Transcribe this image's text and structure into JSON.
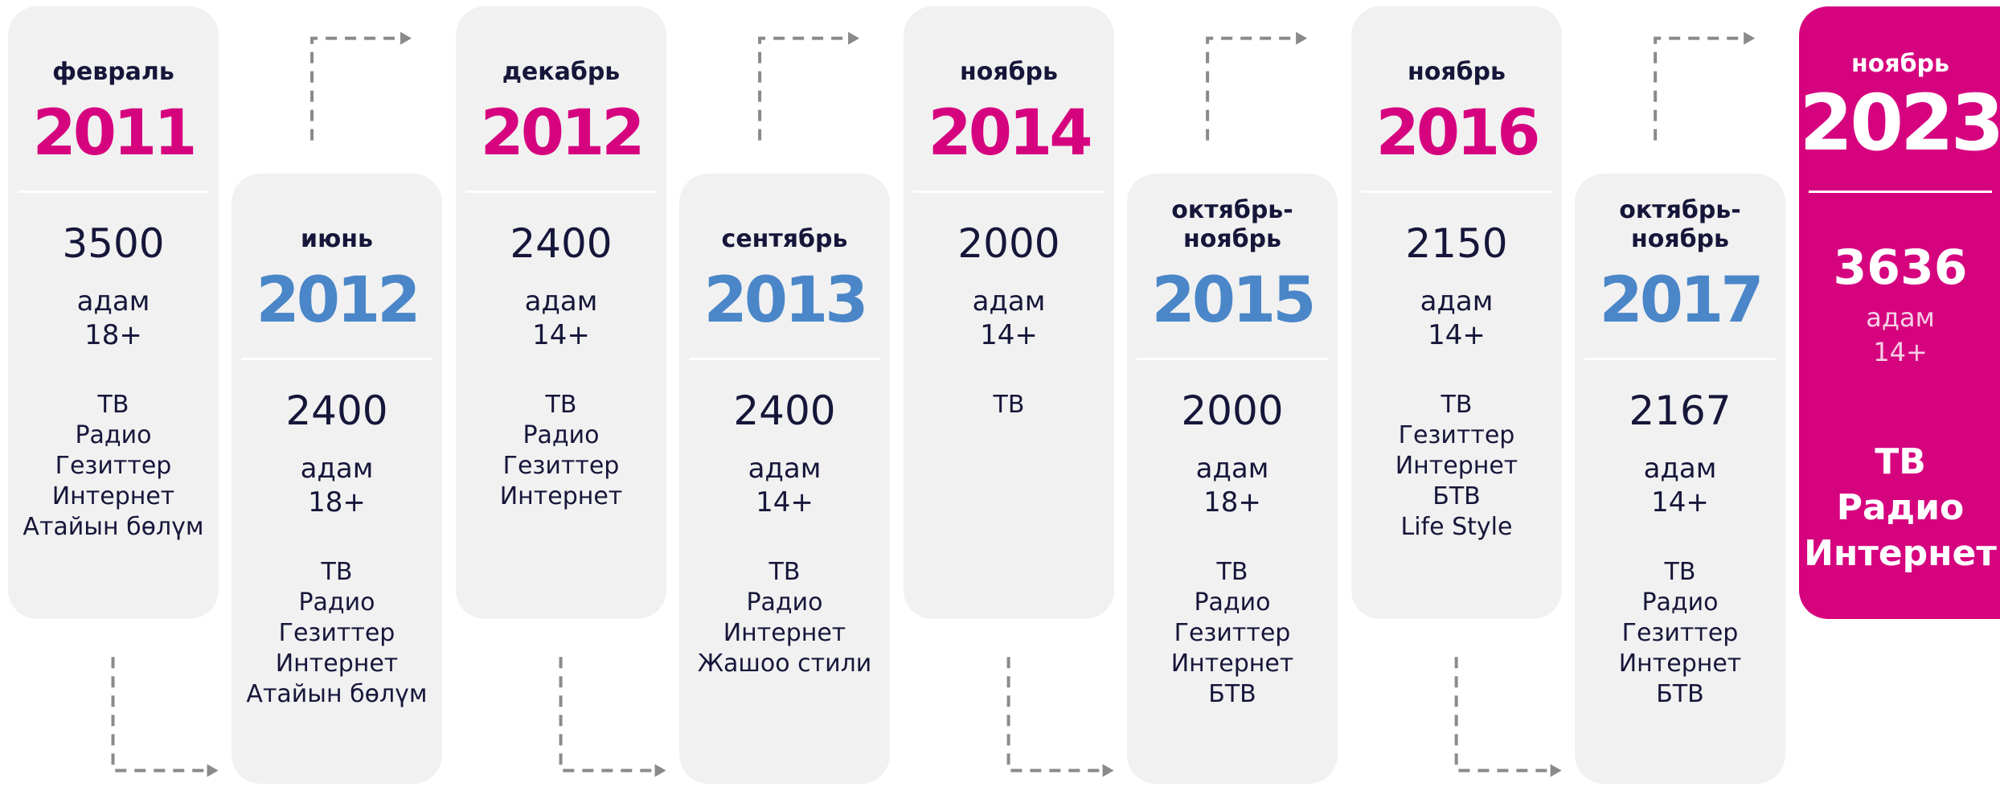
{
  "cards": [
    {
      "month": "февраль",
      "year": "2011",
      "count": "3500",
      "unit": "адам",
      "age": "18+",
      "media": [
        "ТВ",
        "Радио",
        "Гезиттер",
        "Интернет",
        "Атайын бөлүм"
      ]
    },
    {
      "month": "июнь",
      "year": "2012",
      "count": "2400",
      "unit": "адам",
      "age": "18+",
      "media": [
        "ТВ",
        "Радио",
        "Гезиттер",
        "Интернет",
        "Атайын бөлүм"
      ]
    },
    {
      "month": "декабрь",
      "year": "2012",
      "count": "2400",
      "unit": "адам",
      "age": "14+",
      "media": [
        "ТВ",
        "Радио",
        "Гезиттер",
        "Интернет"
      ]
    },
    {
      "month": "сентябрь",
      "year": "2013",
      "count": "2400",
      "unit": "адам",
      "age": "14+",
      "media": [
        "ТВ",
        "Радио",
        "Интернет",
        "Жашоо стили"
      ]
    },
    {
      "month": "ноябрь",
      "year": "2014",
      "count": "2000",
      "unit": "адам",
      "age": "14+",
      "media": [
        "ТВ"
      ]
    },
    {
      "month": "октябрь-ноябрь",
      "year": "2015",
      "count": "2000",
      "unit": "адам",
      "age": "18+",
      "media": [
        "ТВ",
        "Радио",
        "Гезиттер",
        "Интернет",
        "БТВ"
      ]
    },
    {
      "month": "ноябрь",
      "year": "2016",
      "count": "2150",
      "unit": "адам",
      "age": "14+",
      "media": [
        "ТВ",
        "Гезиттер",
        "Интернет",
        "БТВ",
        "Life Style"
      ]
    },
    {
      "month": "октябрь-ноябрь",
      "year": "2017",
      "count": "2167",
      "unit": "адам",
      "age": "14+",
      "media": [
        "ТВ",
        "Радио",
        "Гезиттер",
        "Интернет",
        "БТВ"
      ]
    },
    {
      "month": "ноябрь",
      "year": "2023",
      "count": "3636",
      "unit": "адам",
      "age": "14+",
      "media": [
        "ТВ",
        "Радио",
        "Интернет"
      ]
    }
  ]
}
